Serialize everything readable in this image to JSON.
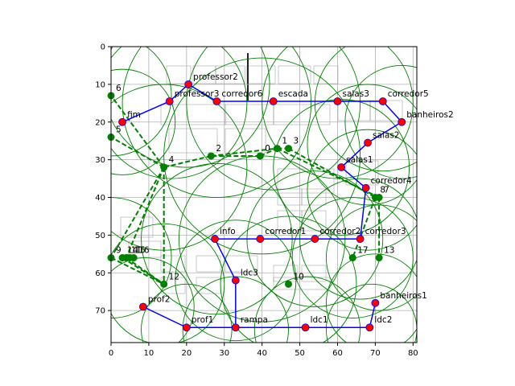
{
  "chart_data": {
    "type": "scatter",
    "title": "",
    "xlabel": "",
    "ylabel": "",
    "xlim": [
      0,
      81
    ],
    "ylim": [
      78.5,
      0
    ],
    "y_inverted": true,
    "grid": true,
    "x_ticks": [
      0,
      10,
      20,
      30,
      40,
      50,
      60,
      70,
      80
    ],
    "y_ticks": [
      0,
      10,
      20,
      30,
      40,
      50,
      60,
      70
    ],
    "colors": {
      "route_line": "#0000ff",
      "route_node": "#ff0000",
      "route_node_edge": "#0000ff",
      "candidate": "#008000",
      "grid": "#b0b0b0",
      "floorplan": "#808080"
    },
    "route_nodes": [
      {
        "label": "professor2",
        "x": 20.5,
        "y": 10.0
      },
      {
        "label": "professor3",
        "x": 15.5,
        "y": 14.5
      },
      {
        "label": "corredor6",
        "x": 28.0,
        "y": 14.5
      },
      {
        "label": "escada",
        "x": 43.0,
        "y": 14.5
      },
      {
        "label": "salas3",
        "x": 60.0,
        "y": 14.5
      },
      {
        "label": "corredor5",
        "x": 72.0,
        "y": 14.5
      },
      {
        "label": "banheiros2",
        "x": 77.0,
        "y": 20.0
      },
      {
        "label": "salas2",
        "x": 68.0,
        "y": 25.5
      },
      {
        "label": "salas1",
        "x": 61.0,
        "y": 32.0
      },
      {
        "label": "corredor4",
        "x": 67.5,
        "y": 37.5
      },
      {
        "label": "corredor3",
        "x": 66.0,
        "y": 51.0
      },
      {
        "label": "corredor2",
        "x": 54.0,
        "y": 51.0
      },
      {
        "label": "corredor1",
        "x": 39.5,
        "y": 51.0
      },
      {
        "label": "info",
        "x": 27.5,
        "y": 51.0
      },
      {
        "label": "ldc3",
        "x": 33.0,
        "y": 62.0
      },
      {
        "label": "rampa",
        "x": 33.0,
        "y": 74.5
      },
      {
        "label": "ldc1",
        "x": 51.5,
        "y": 74.5
      },
      {
        "label": "ldc2",
        "x": 68.5,
        "y": 74.5
      },
      {
        "label": "banheiros1",
        "x": 70.0,
        "y": 68.0
      },
      {
        "label": "prof1",
        "x": 20.0,
        "y": 74.5
      },
      {
        "label": "prof2",
        "x": 8.5,
        "y": 69.0
      },
      {
        "label": "fim",
        "x": 3.0,
        "y": 20.0
      }
    ],
    "route_edges": [
      [
        "professor2",
        "professor3"
      ],
      [
        "professor2",
        "corredor6"
      ],
      [
        "professor3",
        "fim"
      ],
      [
        "corredor6",
        "escada"
      ],
      [
        "escada",
        "salas3"
      ],
      [
        "salas3",
        "corredor5"
      ],
      [
        "corredor5",
        "banheiros2"
      ],
      [
        "banheiros2",
        "salas2"
      ],
      [
        "salas2",
        "salas1"
      ],
      [
        "salas1",
        "corredor4"
      ],
      [
        "corredor4",
        "corredor3"
      ],
      [
        "corredor3",
        "corredor2"
      ],
      [
        "corredor2",
        "corredor1"
      ],
      [
        "corredor1",
        "info"
      ],
      [
        "info",
        "ldc3"
      ],
      [
        "ldc3",
        "rampa"
      ],
      [
        "rampa",
        "ldc1"
      ],
      [
        "ldc1",
        "ldc2"
      ],
      [
        "ldc2",
        "banheiros1"
      ],
      [
        "rampa",
        "prof1"
      ],
      [
        "prof1",
        "prof2"
      ]
    ],
    "candidate_nodes": [
      {
        "label": "0",
        "x": 39.5,
        "y": 29.0
      },
      {
        "label": "1",
        "x": 44.0,
        "y": 27.0
      },
      {
        "label": "2",
        "x": 26.5,
        "y": 29.0
      },
      {
        "label": "3",
        "x": 47.0,
        "y": 27.0
      },
      {
        "label": "4",
        "x": 14.0,
        "y": 32.0
      },
      {
        "label": "5",
        "x": 0.0,
        "y": 24.0
      },
      {
        "label": "6",
        "x": 0.0,
        "y": 13.0
      },
      {
        "label": "7",
        "x": 71.0,
        "y": 40.0
      },
      {
        "label": "8",
        "x": 70.0,
        "y": 40.0
      },
      {
        "label": "9",
        "x": 0.0,
        "y": 56.0
      },
      {
        "label": "10",
        "x": 47.0,
        "y": 63.0
      },
      {
        "label": "11",
        "x": 4.0,
        "y": 56.0
      },
      {
        "label": "12",
        "x": 14.0,
        "y": 63.0
      },
      {
        "label": "13",
        "x": 71.0,
        "y": 56.0
      },
      {
        "label": "14",
        "x": 3.0,
        "y": 56.0
      },
      {
        "label": "15",
        "x": 5.0,
        "y": 56.0
      },
      {
        "label": "16",
        "x": 6.0,
        "y": 56.0
      },
      {
        "label": "17",
        "x": 64.0,
        "y": 56.0
      }
    ],
    "candidate_edges": [
      [
        "0",
        "2"
      ],
      [
        "2",
        "4"
      ],
      [
        "4",
        "5"
      ],
      [
        "4",
        "6"
      ],
      [
        "4",
        "9"
      ],
      [
        "4",
        "11"
      ],
      [
        "4",
        "12"
      ],
      [
        "0",
        "1"
      ],
      [
        "1",
        "3"
      ],
      [
        "3",
        "8"
      ],
      [
        "1",
        "7"
      ],
      [
        "8",
        "7"
      ],
      [
        "8",
        "17"
      ],
      [
        "7",
        "13"
      ],
      [
        "9",
        "12"
      ],
      [
        "14",
        "12"
      ],
      [
        "11",
        "12"
      ],
      [
        "2",
        "1"
      ]
    ],
    "coverage_circles": [
      {
        "x": 20,
        "y": 10,
        "r": 22
      },
      {
        "x": 16,
        "y": 15,
        "r": 20
      },
      {
        "x": 28,
        "y": 15,
        "r": 25
      },
      {
        "x": 43,
        "y": 15,
        "r": 23
      },
      {
        "x": 60,
        "y": 15,
        "r": 20
      },
      {
        "x": 72,
        "y": 15,
        "r": 18
      },
      {
        "x": 77,
        "y": 20,
        "r": 15
      },
      {
        "x": 68,
        "y": 26,
        "r": 16
      },
      {
        "x": 61,
        "y": 32,
        "r": 18
      },
      {
        "x": 68,
        "y": 38,
        "r": 16
      },
      {
        "x": 66,
        "y": 51,
        "r": 16
      },
      {
        "x": 54,
        "y": 51,
        "r": 18
      },
      {
        "x": 40,
        "y": 51,
        "r": 22
      },
      {
        "x": 28,
        "y": 51,
        "r": 20
      },
      {
        "x": 33,
        "y": 62,
        "r": 16
      },
      {
        "x": 33,
        "y": 75,
        "r": 14
      },
      {
        "x": 52,
        "y": 75,
        "r": 14
      },
      {
        "x": 69,
        "y": 75,
        "r": 12
      },
      {
        "x": 70,
        "y": 68,
        "r": 13
      },
      {
        "x": 20,
        "y": 75,
        "r": 12
      },
      {
        "x": 9,
        "y": 69,
        "r": 13
      },
      {
        "x": 3,
        "y": 20,
        "r": 14
      },
      {
        "x": 40,
        "y": 29,
        "r": 26
      },
      {
        "x": 14,
        "y": 32,
        "r": 22
      },
      {
        "x": 47,
        "y": 63,
        "r": 18
      },
      {
        "x": 14,
        "y": 63,
        "r": 16
      },
      {
        "x": 0,
        "y": 56,
        "r": 16
      },
      {
        "x": 64,
        "y": 56,
        "r": 16
      },
      {
        "x": 71,
        "y": 56,
        "r": 14
      },
      {
        "x": 0,
        "y": 13,
        "r": 16
      }
    ]
  }
}
